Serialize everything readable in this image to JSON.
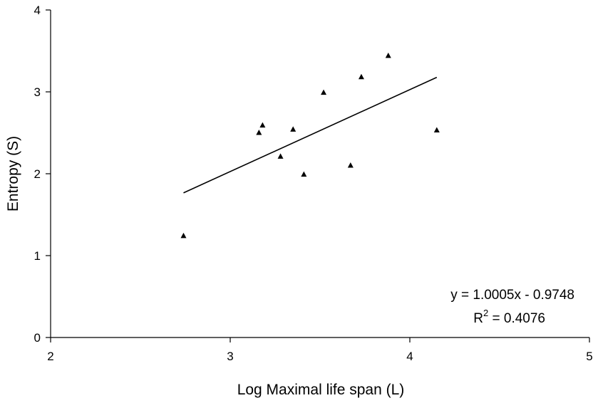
{
  "chart_data": {
    "type": "scatter",
    "title": "",
    "xlabel": "Log Maximal life span (L)",
    "ylabel": "Entropy (S)",
    "xlim": [
      2,
      5
    ],
    "ylim": [
      0,
      4
    ],
    "x_ticks": [
      2,
      3,
      4,
      5
    ],
    "y_ticks": [
      0,
      1,
      2,
      3,
      4
    ],
    "grid": false,
    "legend": "none",
    "marker": "triangle",
    "marker_color": "#000000",
    "series": [
      {
        "points": [
          {
            "x": 2.74,
            "y": 1.24
          },
          {
            "x": 3.16,
            "y": 2.5
          },
          {
            "x": 3.18,
            "y": 2.59
          },
          {
            "x": 3.28,
            "y": 2.21
          },
          {
            "x": 3.35,
            "y": 2.54
          },
          {
            "x": 3.41,
            "y": 1.99
          },
          {
            "x": 3.52,
            "y": 2.99
          },
          {
            "x": 3.67,
            "y": 2.1
          },
          {
            "x": 3.73,
            "y": 3.18
          },
          {
            "x": 3.88,
            "y": 3.44
          },
          {
            "x": 4.15,
            "y": 2.53
          }
        ]
      }
    ],
    "trendline": {
      "type": "linear",
      "slope": 1.0005,
      "intercept": -0.9748,
      "x_range": [
        2.74,
        4.15
      ],
      "equation_label": "y = 1.0005x - 0.9748",
      "r2_prefix": "R",
      "r2_superscript": "2",
      "r2_value": " = 0.4076"
    }
  }
}
